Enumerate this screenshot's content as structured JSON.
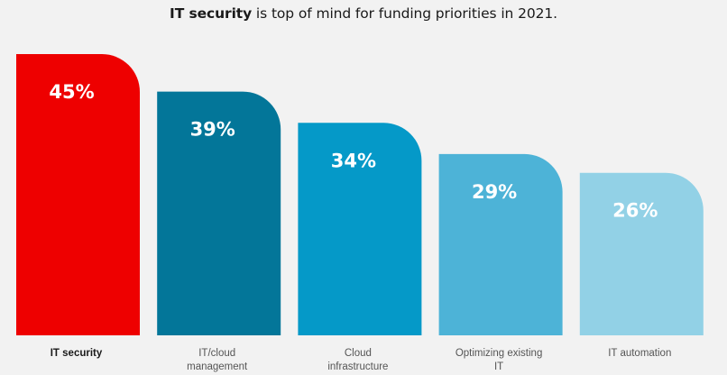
{
  "chart_data": {
    "type": "bar",
    "title": {
      "bold_part": "IT security",
      "rest": " is top of mind for funding priorities in 2021."
    },
    "categories": [
      [
        "IT security"
      ],
      [
        "IT/cloud",
        "management"
      ],
      [
        "Cloud",
        "infrastructure"
      ],
      [
        "Optimizing existing",
        "IT"
      ],
      [
        "IT automation"
      ]
    ],
    "values": [
      45,
      39,
      34,
      29,
      26
    ],
    "value_labels": [
      "45%",
      "39%",
      "34%",
      "29%",
      "26%"
    ],
    "colors": [
      "#ee0000",
      "#037699",
      "#0599c8",
      "#4db3d7",
      "#92d1e6"
    ],
    "highlighted_category_index": 0,
    "xlabel": "",
    "ylabel": "",
    "ylim": [
      0,
      45
    ],
    "grid": false,
    "legend": "none"
  }
}
